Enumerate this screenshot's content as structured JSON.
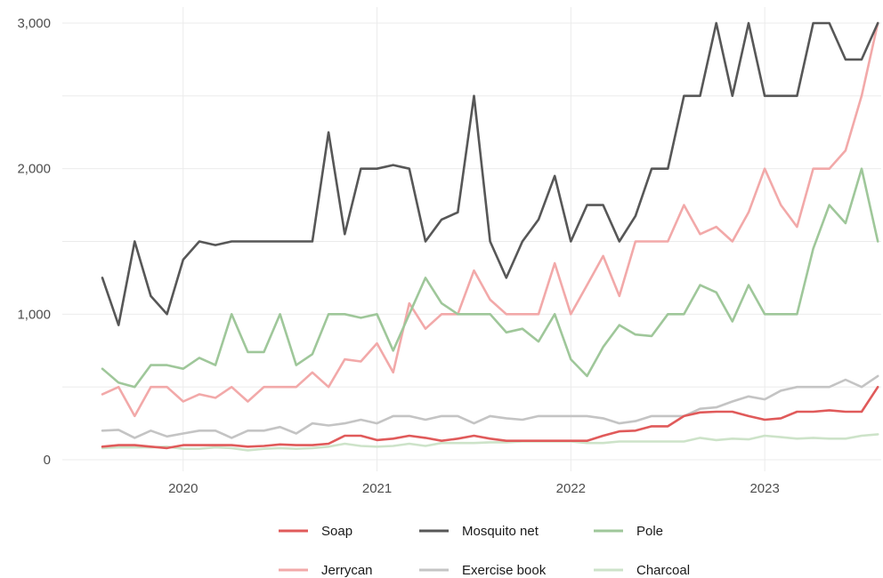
{
  "chart_data": {
    "type": "line",
    "title": "",
    "xlabel": "",
    "ylabel": "",
    "x_start": "2019-08",
    "ylim": [
      0,
      3000
    ],
    "y_ticks": [
      0,
      1000,
      2000,
      3000
    ],
    "y_tick_labels": [
      "0",
      "1,000",
      "2,000",
      "3,000"
    ],
    "x_tick_labels": [
      "2020",
      "2021",
      "2022",
      "2023"
    ],
    "x_ticks": [
      "2020-01",
      "2021-01",
      "2022-01",
      "2023-01"
    ],
    "grid": true,
    "legend_position": "bottom",
    "x": [
      "2019-08",
      "2019-09",
      "2019-10",
      "2019-11",
      "2019-12",
      "2020-01",
      "2020-02",
      "2020-03",
      "2020-04",
      "2020-05",
      "2020-06",
      "2020-07",
      "2020-08",
      "2020-09",
      "2020-10",
      "2020-11",
      "2020-12",
      "2021-01",
      "2021-02",
      "2021-03",
      "2021-04",
      "2021-05",
      "2021-06",
      "2021-07",
      "2021-08",
      "2021-09",
      "2021-10",
      "2021-11",
      "2021-12",
      "2022-01",
      "2022-02",
      "2022-03",
      "2022-04",
      "2022-05",
      "2022-06",
      "2022-07",
      "2022-08",
      "2022-09",
      "2022-10",
      "2022-11",
      "2022-12",
      "2023-01",
      "2023-02",
      "2023-03",
      "2023-04",
      "2023-05",
      "2023-06",
      "2023-07",
      "2023-08"
    ],
    "series": [
      {
        "name": "Soap",
        "color": "#e05a5a",
        "values": [
          90,
          100,
          100,
          90,
          80,
          100,
          100,
          100,
          100,
          90,
          95,
          105,
          100,
          100,
          110,
          165,
          165,
          135,
          145,
          165,
          150,
          130,
          145,
          165,
          145,
          130,
          130,
          130,
          130,
          130,
          130,
          165,
          195,
          200,
          230,
          230,
          300,
          325,
          330,
          330,
          300,
          275,
          285,
          330,
          330,
          340,
          330,
          330,
          500
        ]
      },
      {
        "name": "Mosquito net",
        "color": "#575757",
        "values": [
          1250,
          925,
          1500,
          1125,
          1000,
          1375,
          1500,
          1475,
          1500,
          1500,
          1500,
          1500,
          1500,
          1500,
          2250,
          1550,
          2000,
          2000,
          2025,
          2000,
          1500,
          1650,
          1700,
          2500,
          1500,
          1250,
          1500,
          1650,
          1950,
          1500,
          1750,
          1750,
          1500,
          1675,
          2000,
          2000,
          2500,
          2500,
          3000,
          2500,
          3000,
          2500,
          2500,
          2500,
          3000,
          3000,
          2750,
          2750,
          3000
        ]
      },
      {
        "name": "Pole",
        "color": "#9fc79a",
        "values": [
          625,
          530,
          500,
          650,
          650,
          625,
          700,
          650,
          1000,
          740,
          740,
          1000,
          650,
          725,
          1000,
          1000,
          975,
          1000,
          750,
          1000,
          1250,
          1075,
          1000,
          1000,
          1000,
          875,
          900,
          812,
          1000,
          690,
          575,
          775,
          925,
          860,
          850,
          1000,
          1000,
          1200,
          1150,
          950,
          1200,
          1000,
          1000,
          1000,
          1450,
          1750,
          1625,
          2000,
          1500
        ]
      },
      {
        "name": "Jerrycan",
        "color": "#f2a9a9",
        "values": [
          450,
          500,
          300,
          500,
          500,
          400,
          450,
          425,
          500,
          400,
          500,
          500,
          500,
          600,
          500,
          690,
          675,
          800,
          600,
          1075,
          900,
          1000,
          1000,
          1300,
          1100,
          1000,
          1000,
          1000,
          1350,
          1000,
          1200,
          1400,
          1125,
          1500,
          1500,
          1500,
          1750,
          1550,
          1600,
          1500,
          1700,
          2000,
          1750,
          1600,
          2000,
          2000,
          2125,
          2500,
          3000
        ]
      },
      {
        "name": "Exercise book",
        "color": "#c4c4c4",
        "values": [
          200,
          205,
          150,
          200,
          160,
          180,
          200,
          200,
          150,
          200,
          200,
          225,
          180,
          250,
          235,
          250,
          275,
          250,
          300,
          300,
          275,
          300,
          300,
          250,
          300,
          285,
          275,
          300,
          300,
          300,
          300,
          285,
          250,
          265,
          300,
          300,
          300,
          350,
          360,
          400,
          435,
          415,
          475,
          500,
          500,
          500,
          550,
          500,
          575
        ]
      },
      {
        "name": "Charcoal",
        "color": "#cde3c9",
        "values": [
          80,
          85,
          85,
          85,
          90,
          75,
          75,
          85,
          80,
          65,
          75,
          80,
          75,
          80,
          90,
          110,
          95,
          90,
          95,
          110,
          95,
          115,
          115,
          115,
          120,
          120,
          125,
          125,
          125,
          125,
          115,
          115,
          125,
          125,
          125,
          125,
          125,
          150,
          135,
          145,
          140,
          165,
          155,
          145,
          150,
          145,
          145,
          165,
          175
        ]
      }
    ]
  }
}
